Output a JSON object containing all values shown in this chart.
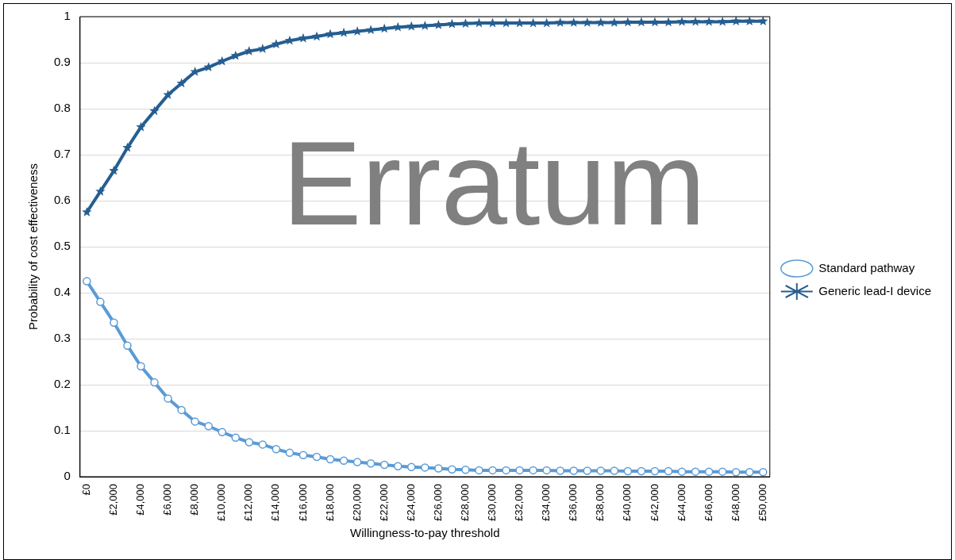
{
  "chart_data": {
    "type": "line",
    "xlabel": "Willingness-to-pay threshold",
    "ylabel": "Probability of cost effectiveness",
    "categories": [
      "£0",
      null,
      "£2,000",
      null,
      "£4,000",
      null,
      "£6,000",
      null,
      "£8,000",
      null,
      "£10,000",
      null,
      "£12,000",
      null,
      "£14,000",
      null,
      "£16,000",
      null,
      "£18,000",
      null,
      "£20,000",
      null,
      "£22,000",
      null,
      "£24,000",
      null,
      "£26,000",
      null,
      "£28,000",
      null,
      "£30,000",
      null,
      "£32,000",
      null,
      "£34,000",
      null,
      "£36,000",
      null,
      "£38,000",
      null,
      "£40,000",
      null,
      "£42,000",
      null,
      "£44,000",
      null,
      "£46,000",
      null,
      "£48,000",
      null,
      "£50,000"
    ],
    "series": [
      {
        "name": "Standard pathway",
        "color": "#5b9bd5",
        "marker": "circle",
        "values": [
          0.425,
          0.38,
          0.335,
          0.285,
          0.24,
          0.205,
          0.17,
          0.145,
          0.12,
          0.11,
          0.097,
          0.085,
          0.075,
          0.07,
          0.06,
          0.052,
          0.047,
          0.043,
          0.038,
          0.035,
          0.032,
          0.029,
          0.026,
          0.023,
          0.021,
          0.02,
          0.018,
          0.016,
          0.015,
          0.014,
          0.014,
          0.014,
          0.014,
          0.014,
          0.014,
          0.013,
          0.013,
          0.013,
          0.013,
          0.013,
          0.012,
          0.012,
          0.012,
          0.012,
          0.011,
          0.011,
          0.011,
          0.011,
          0.01,
          0.01,
          0.01
        ]
      },
      {
        "name": "Generic lead-I device",
        "color": "#255e91",
        "marker": "star",
        "values": [
          0.575,
          0.62,
          0.665,
          0.715,
          0.76,
          0.795,
          0.83,
          0.855,
          0.88,
          0.89,
          0.903,
          0.915,
          0.925,
          0.93,
          0.94,
          0.948,
          0.953,
          0.957,
          0.962,
          0.965,
          0.968,
          0.971,
          0.974,
          0.977,
          0.979,
          0.98,
          0.982,
          0.984,
          0.985,
          0.986,
          0.986,
          0.986,
          0.986,
          0.986,
          0.986,
          0.987,
          0.987,
          0.987,
          0.987,
          0.987,
          0.988,
          0.988,
          0.988,
          0.988,
          0.989,
          0.989,
          0.989,
          0.989,
          0.99,
          0.99,
          0.99
        ]
      }
    ],
    "ylim": [
      0,
      1
    ],
    "yticks": [
      0,
      0.1,
      0.2,
      0.3,
      0.4,
      0.5,
      0.6,
      0.7,
      0.8,
      0.9,
      1
    ],
    "grid": "y",
    "legend": "right",
    "line_style": "solid",
    "annotations": [
      "Erratum"
    ]
  }
}
